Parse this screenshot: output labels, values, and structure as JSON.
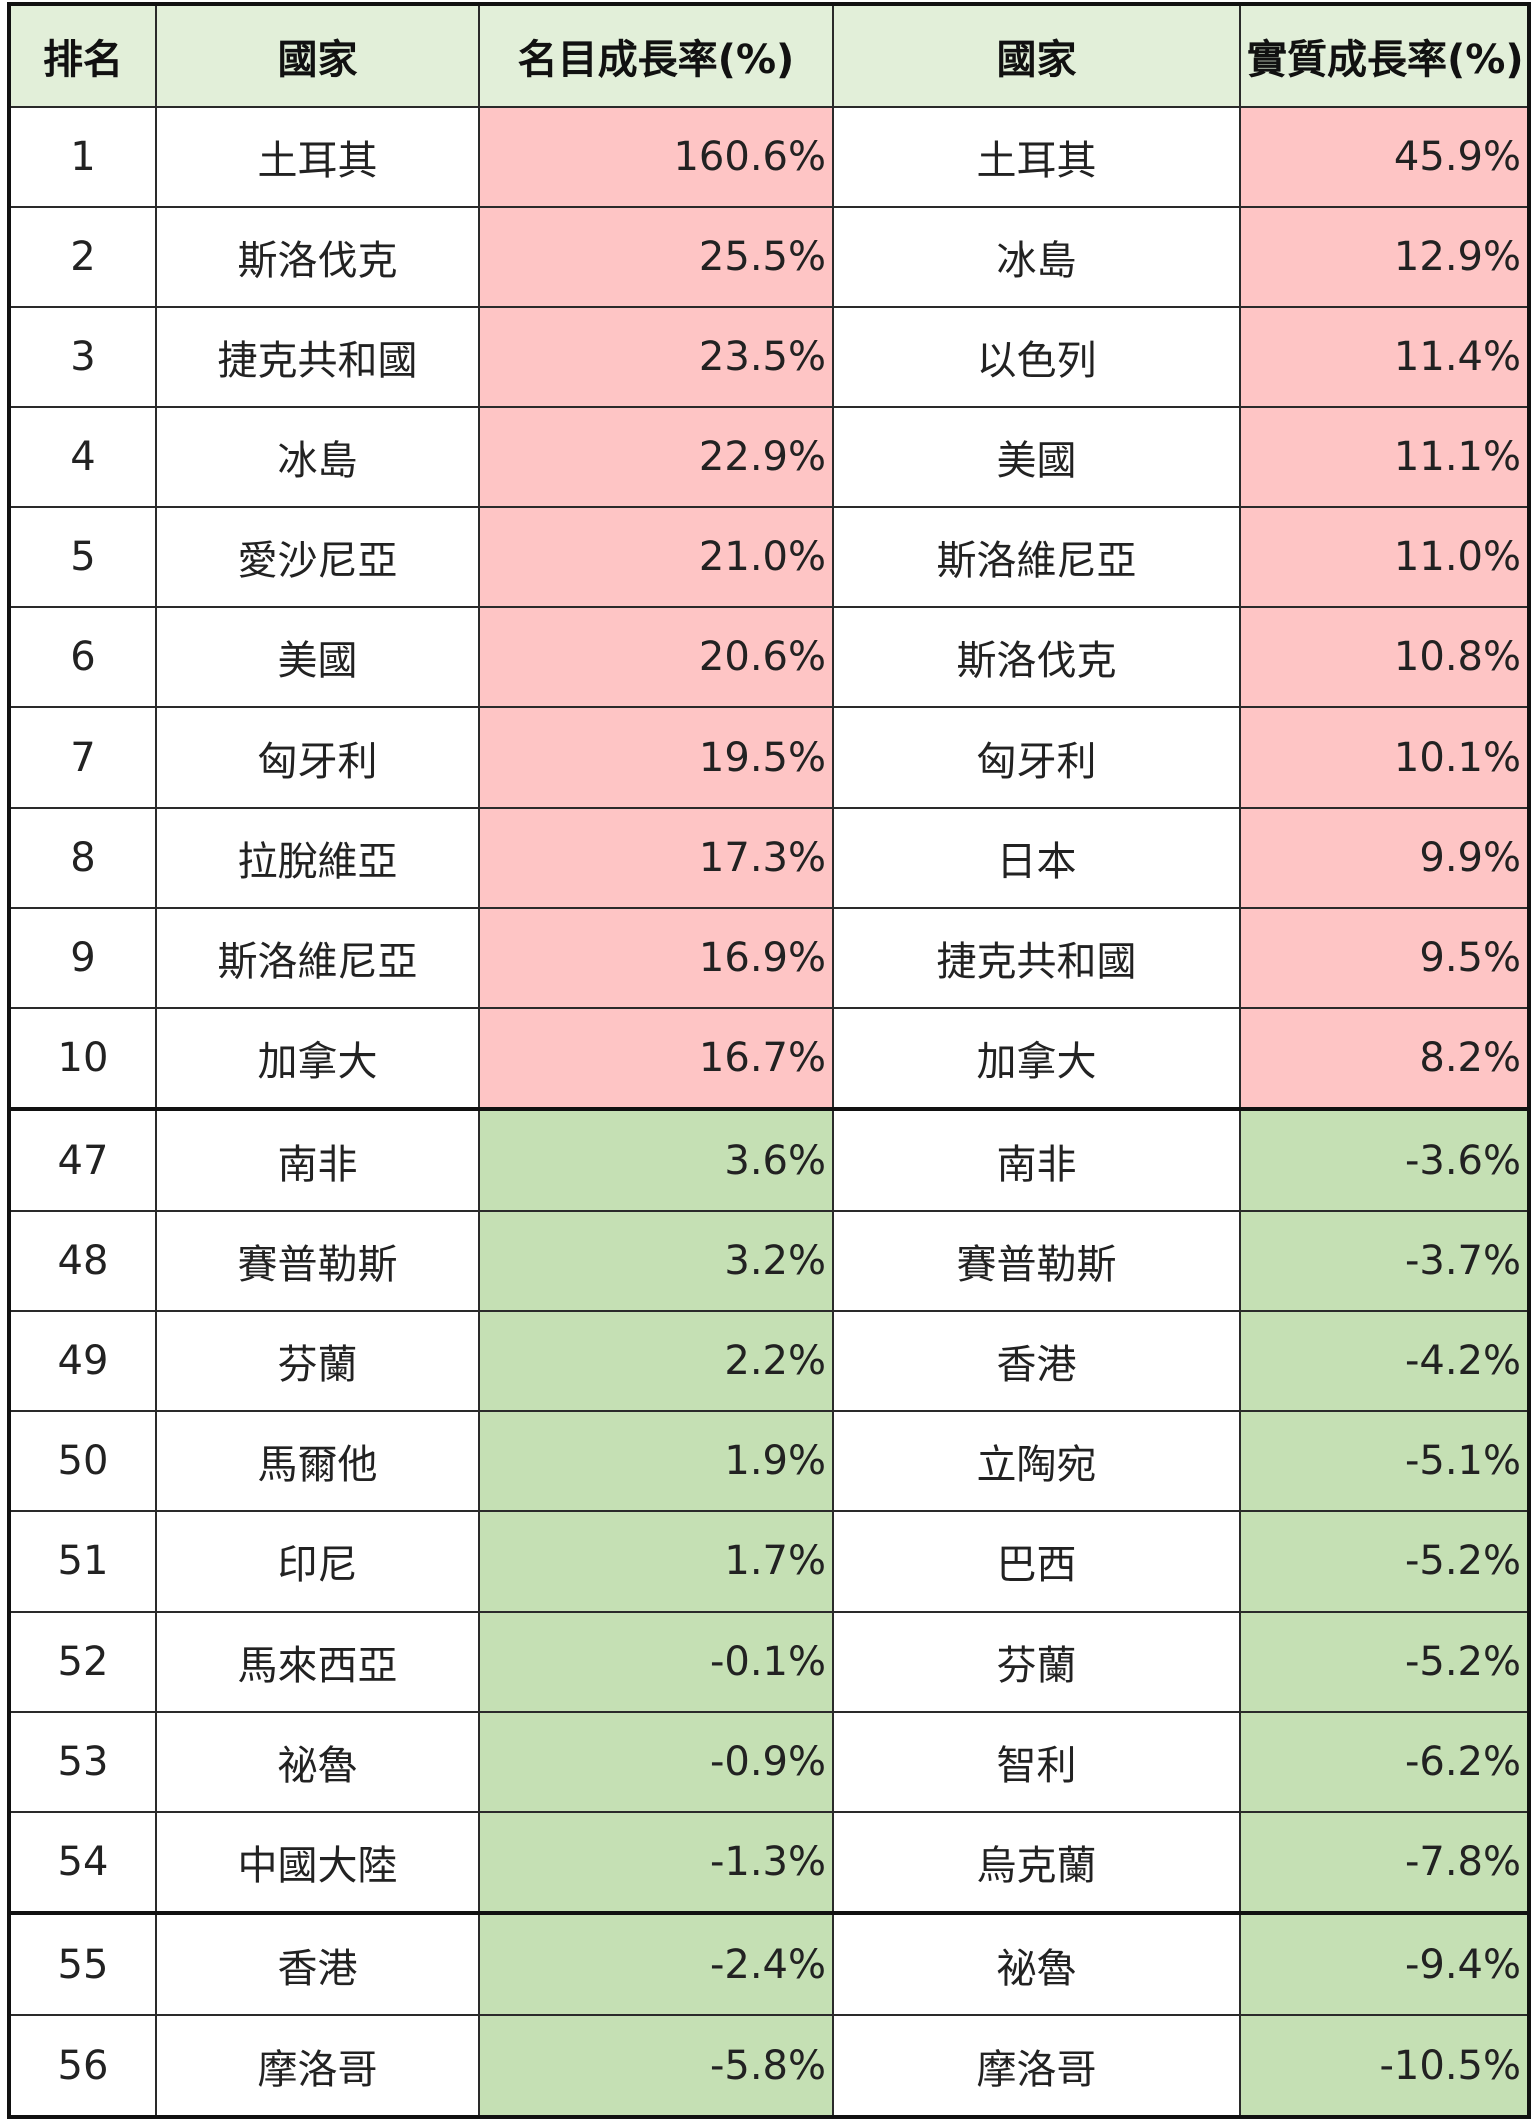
{
  "table": {
    "headers": [
      "排名",
      "國家",
      "名目成長率(%)",
      "國家",
      "實質成長率(%)"
    ],
    "colors": {
      "header_bg": "#e2efd9",
      "top_highlight": "#fec5c5",
      "bottom_highlight": "#c5e0b4"
    },
    "rows": [
      {
        "rank": "1",
        "nominal_country": "土耳其",
        "nominal_rate": "160.6%",
        "real_country": "土耳其",
        "real_rate": "45.9%",
        "group": "top"
      },
      {
        "rank": "2",
        "nominal_country": "斯洛伐克",
        "nominal_rate": "25.5%",
        "real_country": "冰島",
        "real_rate": "12.9%",
        "group": "top"
      },
      {
        "rank": "3",
        "nominal_country": "捷克共和國",
        "nominal_rate": "23.5%",
        "real_country": "以色列",
        "real_rate": "11.4%",
        "group": "top"
      },
      {
        "rank": "4",
        "nominal_country": "冰島",
        "nominal_rate": "22.9%",
        "real_country": "美國",
        "real_rate": "11.1%",
        "group": "top"
      },
      {
        "rank": "5",
        "nominal_country": "愛沙尼亞",
        "nominal_rate": "21.0%",
        "real_country": "斯洛維尼亞",
        "real_rate": "11.0%",
        "group": "top"
      },
      {
        "rank": "6",
        "nominal_country": "美國",
        "nominal_rate": "20.6%",
        "real_country": "斯洛伐克",
        "real_rate": "10.8%",
        "group": "top"
      },
      {
        "rank": "7",
        "nominal_country": "匈牙利",
        "nominal_rate": "19.5%",
        "real_country": "匈牙利",
        "real_rate": "10.1%",
        "group": "top"
      },
      {
        "rank": "8",
        "nominal_country": "拉脫維亞",
        "nominal_rate": "17.3%",
        "real_country": "日本",
        "real_rate": "9.9%",
        "group": "top"
      },
      {
        "rank": "9",
        "nominal_country": "斯洛維尼亞",
        "nominal_rate": "16.9%",
        "real_country": "捷克共和國",
        "real_rate": "9.5%",
        "group": "top"
      },
      {
        "rank": "10",
        "nominal_country": "加拿大",
        "nominal_rate": "16.7%",
        "real_country": "加拿大",
        "real_rate": "8.2%",
        "group": "top"
      },
      {
        "rank": "47",
        "nominal_country": "南非",
        "nominal_rate": "3.6%",
        "real_country": "南非",
        "real_rate": "-3.6%",
        "group": "bottom",
        "separator": true
      },
      {
        "rank": "48",
        "nominal_country": "賽普勒斯",
        "nominal_rate": "3.2%",
        "real_country": "賽普勒斯",
        "real_rate": "-3.7%",
        "group": "bottom"
      },
      {
        "rank": "49",
        "nominal_country": "芬蘭",
        "nominal_rate": "2.2%",
        "real_country": "香港",
        "real_rate": "-4.2%",
        "group": "bottom"
      },
      {
        "rank": "50",
        "nominal_country": "馬爾他",
        "nominal_rate": "1.9%",
        "real_country": "立陶宛",
        "real_rate": "-5.1%",
        "group": "bottom"
      },
      {
        "rank": "51",
        "nominal_country": "印尼",
        "nominal_rate": "1.7%",
        "real_country": "巴西",
        "real_rate": "-5.2%",
        "group": "bottom"
      },
      {
        "rank": "52",
        "nominal_country": "馬來西亞",
        "nominal_rate": "-0.1%",
        "real_country": "芬蘭",
        "real_rate": "-5.2%",
        "group": "bottom"
      },
      {
        "rank": "53",
        "nominal_country": "祕魯",
        "nominal_rate": "-0.9%",
        "real_country": "智利",
        "real_rate": "-6.2%",
        "group": "bottom"
      },
      {
        "rank": "54",
        "nominal_country": "中國大陸",
        "nominal_rate": "-1.3%",
        "real_country": "烏克蘭",
        "real_rate": "-7.8%",
        "group": "bottom"
      },
      {
        "rank": "55",
        "nominal_country": "香港",
        "nominal_rate": "-2.4%",
        "real_country": "祕魯",
        "real_rate": "-9.4%",
        "group": "bottom",
        "separator": true
      },
      {
        "rank": "56",
        "nominal_country": "摩洛哥",
        "nominal_rate": "-5.8%",
        "real_country": "摩洛哥",
        "real_rate": "-10.5%",
        "group": "bottom"
      }
    ]
  }
}
